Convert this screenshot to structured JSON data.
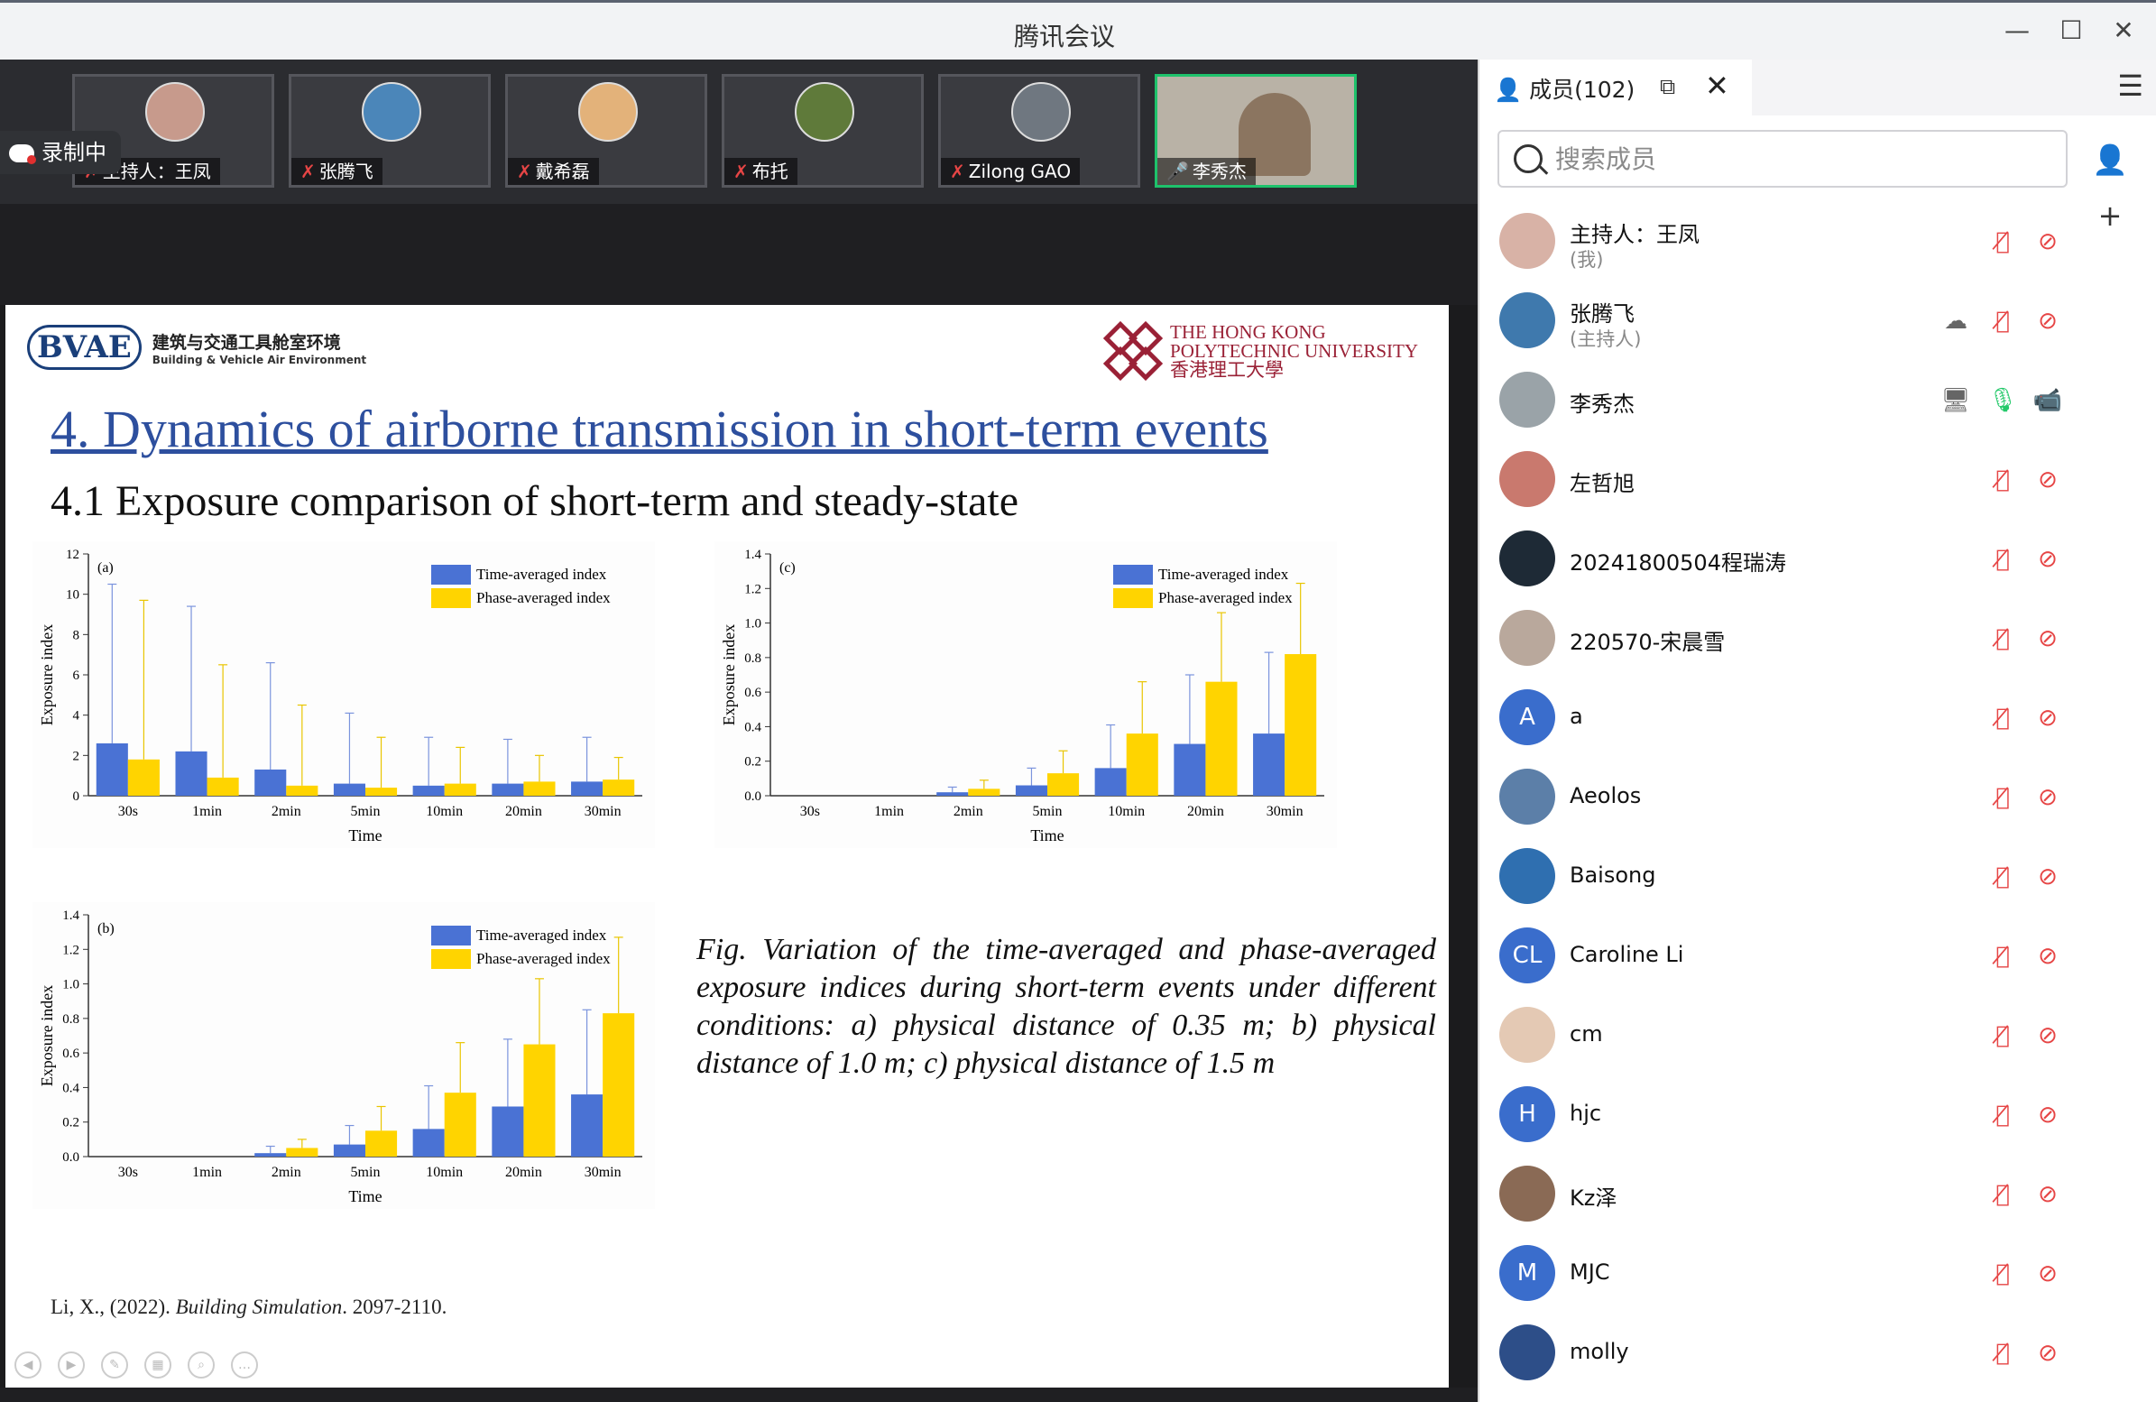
{
  "window": {
    "title": "腾讯会议",
    "minimize": "—",
    "maximize": "☐",
    "close": "✕"
  },
  "recording": {
    "label": "录制中"
  },
  "video_tiles": [
    {
      "name": "主持人：王凤",
      "mic": "muted",
      "active": false,
      "avatar_color": "#c79a8c"
    },
    {
      "name": "张腾飞",
      "mic": "muted",
      "active": false,
      "avatar_color": "#4b86b9"
    },
    {
      "name": "戴希磊",
      "mic": "muted",
      "active": false,
      "avatar_color": "#e3b27a"
    },
    {
      "name": "布托",
      "mic": "muted",
      "active": false,
      "avatar_color": "#5f7a3a"
    },
    {
      "name": "Zilong GAO",
      "mic": "muted",
      "active": false,
      "avatar_color": "#6f7780"
    },
    {
      "name": "李秀杰",
      "mic": "on",
      "active": true,
      "avatar_color": "#8b7560"
    }
  ],
  "slide": {
    "logo_left_abbr": "BVAE",
    "logo_left_cn": "建筑与交通工具舱室环境",
    "logo_left_en": "Building & Vehicle Air Environment",
    "logo_right_1": "THE HONG KONG",
    "logo_right_2": "POLYTECHNIC UNIVERSITY",
    "logo_right_3": "香港理工大學",
    "title": "4. Dynamics of airborne transmission in short-term events",
    "subtitle": "4.1 Exposure comparison of short-term and steady-state",
    "caption": "Fig. Variation of the time-averaged and phase-averaged exposure indices during short-term events under different conditions: a) physical distance of 0.35 m; b) physical distance of 1.0 m; c) physical distance of 1.5 m",
    "ref_a": "Li, X., (2022). ",
    "ref_b": "Building Simulation",
    "ref_c": ". 2097-2110."
  },
  "chart_data": [
    {
      "type": "bar",
      "panel": "(a)",
      "xlabel": "Time",
      "ylabel": "Exposure index",
      "categories": [
        "30s",
        "1min",
        "2min",
        "5min",
        "10min",
        "20min",
        "30min"
      ],
      "ylim": [
        0,
        12
      ],
      "yticks": [
        0,
        2,
        4,
        6,
        8,
        10,
        12
      ],
      "ytick_labels": [
        "0",
        "2",
        "4",
        "6",
        "8",
        "10",
        "12"
      ],
      "series": [
        {
          "name": "Time-averaged index",
          "color": "#4a72d4",
          "values": [
            2.6,
            2.2,
            1.3,
            0.6,
            0.5,
            0.6,
            0.7
          ],
          "err_top": [
            10.5,
            9.4,
            6.6,
            4.1,
            2.9,
            2.8,
            2.9
          ]
        },
        {
          "name": "Phase-averaged index",
          "color": "#ffd400",
          "values": [
            1.8,
            0.9,
            0.5,
            0.4,
            0.6,
            0.7,
            0.8
          ],
          "err_top": [
            9.7,
            6.5,
            4.5,
            2.9,
            2.4,
            2.0,
            1.9
          ]
        }
      ]
    },
    {
      "type": "bar",
      "panel": "(b)",
      "xlabel": "Time",
      "ylabel": "Exposure index",
      "categories": [
        "30s",
        "1min",
        "2min",
        "5min",
        "10min",
        "20min",
        "30min"
      ],
      "ylim": [
        0,
        1.4
      ],
      "yticks": [
        0,
        0.2,
        0.4,
        0.6,
        0.8,
        1.0,
        1.2,
        1.4
      ],
      "ytick_labels": [
        "0.0",
        "0.2",
        "0.4",
        "0.6",
        "0.8",
        "1.0",
        "1.2",
        "1.4"
      ],
      "series": [
        {
          "name": "Time-averaged index",
          "color": "#4a72d4",
          "values": [
            0,
            0,
            0.02,
            0.07,
            0.16,
            0.29,
            0.36
          ],
          "err_top": [
            0,
            0,
            0.06,
            0.18,
            0.41,
            0.68,
            0.85
          ]
        },
        {
          "name": "Phase-averaged index",
          "color": "#ffd400",
          "values": [
            0,
            0,
            0.05,
            0.15,
            0.37,
            0.65,
            0.83
          ],
          "err_top": [
            0,
            0,
            0.1,
            0.29,
            0.66,
            1.03,
            1.27
          ]
        }
      ]
    },
    {
      "type": "bar",
      "panel": "(c)",
      "xlabel": "Time",
      "ylabel": "Exposure index",
      "categories": [
        "30s",
        "1min",
        "2min",
        "5min",
        "10min",
        "20min",
        "30min"
      ],
      "ylim": [
        0,
        1.4
      ],
      "yticks": [
        0,
        0.2,
        0.4,
        0.6,
        0.8,
        1.0,
        1.2,
        1.4
      ],
      "ytick_labels": [
        "0.0",
        "0.2",
        "0.4",
        "0.6",
        "0.8",
        "1.0",
        "1.2",
        "1.4"
      ],
      "series": [
        {
          "name": "Time-averaged index",
          "color": "#4a72d4",
          "values": [
            0,
            0,
            0.02,
            0.06,
            0.16,
            0.3,
            0.36
          ],
          "err_top": [
            0,
            0,
            0.05,
            0.16,
            0.41,
            0.7,
            0.83
          ]
        },
        {
          "name": "Phase-averaged index",
          "color": "#ffd400",
          "values": [
            0,
            0,
            0.04,
            0.13,
            0.36,
            0.66,
            0.82
          ],
          "err_top": [
            0,
            0,
            0.09,
            0.26,
            0.66,
            1.06,
            1.23
          ]
        }
      ]
    }
  ],
  "panel": {
    "members_label": "成员(102)",
    "search_placeholder": "搜索成员",
    "members": [
      {
        "name": "主持人：王凤",
        "role": "(我)",
        "avatar": "photo",
        "color": "#d8b2a6",
        "mic": "muted",
        "cam": "off"
      },
      {
        "name": "张腾飞",
        "role": "(主持人)",
        "avatar": "photo",
        "color": "#3f79ad",
        "mic": "muted",
        "cam": "off",
        "extra": "recording"
      },
      {
        "name": "李秀杰",
        "role": "",
        "avatar": "photo",
        "color": "#9aa3a8",
        "mic": "on",
        "cam": "on",
        "extra": "screen"
      },
      {
        "name": "左哲旭",
        "role": "",
        "avatar": "photo",
        "color": "#c9796e",
        "mic": "muted",
        "cam": "off"
      },
      {
        "name": "20241800504程瑞涛",
        "role": "",
        "avatar": "photo",
        "color": "#1e2a36",
        "mic": "muted",
        "cam": "off"
      },
      {
        "name": "220570-宋晨雪",
        "role": "",
        "avatar": "photo",
        "color": "#b9a89c",
        "mic": "muted",
        "cam": "off"
      },
      {
        "name": "a",
        "role": "",
        "avatar": "A",
        "color": "#3a6dcc",
        "mic": "muted",
        "cam": "off"
      },
      {
        "name": "Aeolos",
        "role": "",
        "avatar": "photo",
        "color": "#5c7fa8",
        "mic": "muted",
        "cam": "off"
      },
      {
        "name": "Baisong",
        "role": "",
        "avatar": "photo",
        "color": "#2f6fb0",
        "mic": "muted",
        "cam": "off"
      },
      {
        "name": "Caroline Li",
        "role": "",
        "avatar": "CL",
        "color": "#3a6dcc",
        "mic": "muted",
        "cam": "off"
      },
      {
        "name": "cm",
        "role": "",
        "avatar": "photo",
        "color": "#e4c9b4",
        "mic": "muted",
        "cam": "off"
      },
      {
        "name": "hjc",
        "role": "",
        "avatar": "H",
        "color": "#3a6dcc",
        "mic": "muted",
        "cam": "off"
      },
      {
        "name": "Kz泽",
        "role": "",
        "avatar": "photo",
        "color": "#8a6a55",
        "mic": "muted",
        "cam": "off"
      },
      {
        "name": "MJC",
        "role": "",
        "avatar": "M",
        "color": "#3a6dcc",
        "mic": "muted",
        "cam": "off"
      },
      {
        "name": "molly",
        "role": "",
        "avatar": "photo",
        "color": "#2d4e88",
        "mic": "muted",
        "cam": "off"
      }
    ]
  }
}
